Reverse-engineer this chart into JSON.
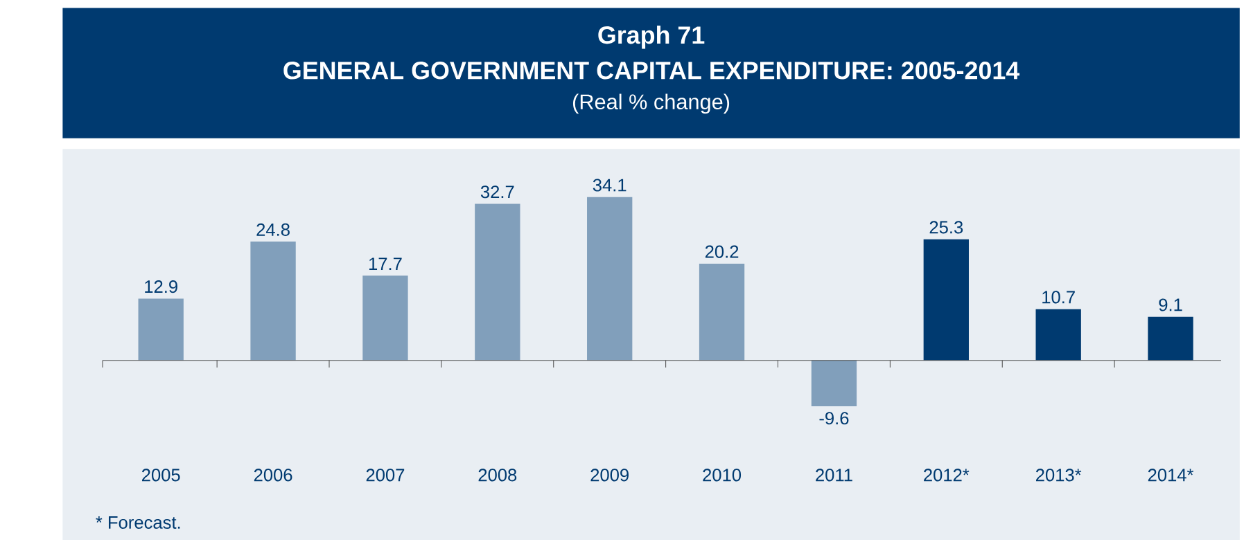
{
  "chart_data": {
    "type": "bar",
    "title": "GENERAL GOVERNMENT CAPITAL EXPENDITURE: 2005-2014",
    "subtitle": "(Real % change)",
    "annotations": [
      "Graph 71",
      "*   Forecast."
    ],
    "categories": [
      "2005",
      "2006",
      "2007",
      "2008",
      "2009",
      "2010",
      "2011",
      "2012*",
      "2013*",
      "2014*"
    ],
    "values": [
      12.9,
      24.8,
      17.7,
      32.7,
      34.1,
      20.2,
      -9.6,
      25.3,
      10.7,
      9.1
    ],
    "colors": [
      "#819fbb",
      "#819fbb",
      "#819fbb",
      "#819fbb",
      "#819fbb",
      "#819fbb",
      "#819fbb",
      "#003a70",
      "#003a70",
      "#003a70"
    ],
    "data_labels": true
  }
}
